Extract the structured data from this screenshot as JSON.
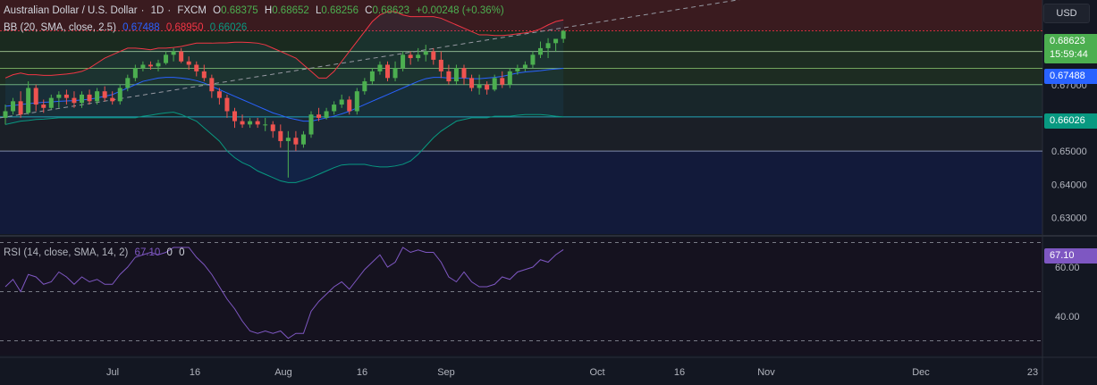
{
  "symbol": {
    "name": "Australian Dollar / U.S. Dollar",
    "interval": "1D",
    "exchange": "FXCM",
    "open_label": "O",
    "open": "0.68375",
    "high_label": "H",
    "high": "0.68652",
    "low_label": "L",
    "low": "0.68256",
    "close_label": "C",
    "close": "0.68623",
    "change": "+0.00248 (+0.36%)"
  },
  "bb": {
    "title": "BB (20, SMA, close, 2.5)",
    "basis": "0.67488",
    "upper": "0.68950",
    "lower": "0.66026"
  },
  "rsi": {
    "title": "RSI (14, close, SMA, 14, 2)",
    "value": "67.10",
    "ma": "0",
    "extra": "0"
  },
  "currency_button": "USD",
  "price_tags": {
    "last_price": "0.68623",
    "countdown": "15:59:44",
    "bb_basis": "0.67488",
    "bb_lower": "0.66026",
    "rsi_value": "67.10"
  },
  "price_axis": [
    "0.67000",
    "0.65000",
    "0.64000",
    "0.63000"
  ],
  "rsi_axis": [
    "60.00",
    "40.00"
  ],
  "time_axis": [
    "Jul",
    "16",
    "Aug",
    "16",
    "Sep",
    "Oct",
    "16",
    "Nov",
    "Dec",
    "23"
  ],
  "colors": {
    "up": "#26a69a",
    "up_candle": "#4caf50",
    "down": "#ef5350",
    "bb_basis": "#2962ff",
    "bb_upper": "#f23645",
    "bb_lower": "#089981",
    "rsi": "#7e57c2",
    "background": "#131722"
  },
  "chart_data": {
    "type": "candlestick",
    "price_ylim": [
      0.625,
      0.6955
    ],
    "rsi_ylim": [
      24,
      72
    ],
    "candles": [
      [
        0.66,
        0.664,
        0.658,
        0.662
      ],
      [
        0.662,
        0.666,
        0.661,
        0.665
      ],
      [
        0.665,
        0.668,
        0.66,
        0.661
      ],
      [
        0.6615,
        0.671,
        0.661,
        0.669
      ],
      [
        0.669,
        0.67,
        0.662,
        0.664
      ],
      [
        0.664,
        0.6655,
        0.6615,
        0.663
      ],
      [
        0.663,
        0.667,
        0.6625,
        0.666
      ],
      [
        0.666,
        0.668,
        0.663,
        0.667
      ],
      [
        0.667,
        0.6685,
        0.664,
        0.666
      ],
      [
        0.666,
        0.668,
        0.663,
        0.6645
      ],
      [
        0.6645,
        0.668,
        0.663,
        0.667
      ],
      [
        0.667,
        0.6685,
        0.664,
        0.665
      ],
      [
        0.665,
        0.669,
        0.664,
        0.668
      ],
      [
        0.668,
        0.6695,
        0.665,
        0.666
      ],
      [
        0.666,
        0.668,
        0.664,
        0.665
      ],
      [
        0.665,
        0.67,
        0.664,
        0.669
      ],
      [
        0.669,
        0.673,
        0.668,
        0.672
      ],
      [
        0.672,
        0.676,
        0.671,
        0.675
      ],
      [
        0.675,
        0.677,
        0.674,
        0.676
      ],
      [
        0.676,
        0.677,
        0.6745,
        0.6755
      ],
      [
        0.6755,
        0.6775,
        0.674,
        0.6765
      ],
      [
        0.6765,
        0.68,
        0.676,
        0.679
      ],
      [
        0.679,
        0.681,
        0.677,
        0.68
      ],
      [
        0.68,
        0.681,
        0.6765,
        0.677
      ],
      [
        0.677,
        0.6785,
        0.6745,
        0.676
      ],
      [
        0.676,
        0.677,
        0.6725,
        0.674
      ],
      [
        0.674,
        0.676,
        0.671,
        0.672
      ],
      [
        0.672,
        0.673,
        0.666,
        0.668
      ],
      [
        0.668,
        0.669,
        0.664,
        0.666
      ],
      [
        0.666,
        0.667,
        0.66,
        0.662
      ],
      [
        0.662,
        0.663,
        0.657,
        0.659
      ],
      [
        0.659,
        0.661,
        0.657,
        0.658
      ],
      [
        0.658,
        0.66,
        0.657,
        0.659
      ],
      [
        0.659,
        0.66,
        0.657,
        0.658
      ],
      [
        0.658,
        0.66,
        0.656,
        0.658
      ],
      [
        0.658,
        0.659,
        0.654,
        0.656
      ],
      [
        0.656,
        0.658,
        0.651,
        0.653
      ],
      [
        0.653,
        0.656,
        0.642,
        0.654
      ],
      [
        0.654,
        0.656,
        0.65,
        0.652
      ],
      [
        0.652,
        0.656,
        0.651,
        0.655
      ],
      [
        0.655,
        0.662,
        0.654,
        0.661
      ],
      [
        0.661,
        0.663,
        0.659,
        0.66
      ],
      [
        0.66,
        0.663,
        0.6595,
        0.662
      ],
      [
        0.662,
        0.665,
        0.661,
        0.664
      ],
      [
        0.664,
        0.667,
        0.663,
        0.6655
      ],
      [
        0.6655,
        0.6665,
        0.661,
        0.662
      ],
      [
        0.662,
        0.669,
        0.661,
        0.668
      ],
      [
        0.668,
        0.672,
        0.667,
        0.671
      ],
      [
        0.671,
        0.675,
        0.67,
        0.674
      ],
      [
        0.674,
        0.677,
        0.673,
        0.676
      ],
      [
        0.676,
        0.677,
        0.671,
        0.672
      ],
      [
        0.672,
        0.677,
        0.671,
        0.675
      ],
      [
        0.675,
        0.68,
        0.674,
        0.679
      ],
      [
        0.679,
        0.68,
        0.676,
        0.678
      ],
      [
        0.678,
        0.681,
        0.677,
        0.679
      ],
      [
        0.679,
        0.682,
        0.677,
        0.68
      ],
      [
        0.68,
        0.681,
        0.676,
        0.6775
      ],
      [
        0.6775,
        0.68,
        0.672,
        0.674
      ],
      [
        0.674,
        0.676,
        0.67,
        0.671
      ],
      [
        0.671,
        0.676,
        0.67,
        0.675
      ],
      [
        0.675,
        0.676,
        0.67,
        0.672
      ],
      [
        0.672,
        0.673,
        0.668,
        0.669
      ],
      [
        0.669,
        0.673,
        0.667,
        0.67
      ],
      [
        0.67,
        0.671,
        0.667,
        0.6685
      ],
      [
        0.6685,
        0.673,
        0.668,
        0.672
      ],
      [
        0.672,
        0.674,
        0.669,
        0.67
      ],
      [
        0.67,
        0.675,
        0.669,
        0.674
      ],
      [
        0.674,
        0.676,
        0.673,
        0.675
      ],
      [
        0.675,
        0.677,
        0.674,
        0.676
      ],
      [
        0.676,
        0.68,
        0.675,
        0.679
      ],
      [
        0.679,
        0.683,
        0.678,
        0.681
      ],
      [
        0.681,
        0.684,
        0.678,
        0.6825
      ],
      [
        0.6825,
        0.6835,
        0.68,
        0.6838
      ],
      [
        0.6838,
        0.6865,
        0.6826,
        0.6862
      ]
    ],
    "bb_upper": [
      0.672,
      0.673,
      0.6735,
      0.673,
      0.673,
      0.6728,
      0.6728,
      0.673,
      0.6732,
      0.6735,
      0.674,
      0.675,
      0.6765,
      0.678,
      0.679,
      0.68,
      0.681,
      0.681,
      0.6808,
      0.6805,
      0.681,
      0.681,
      0.6812,
      0.6815,
      0.682,
      0.6825,
      0.6825,
      0.6825,
      0.6826,
      0.6826,
      0.6828,
      0.6828,
      0.6827,
      0.6825,
      0.682,
      0.681,
      0.68,
      0.679,
      0.678,
      0.676,
      0.674,
      0.672,
      0.672,
      0.674,
      0.677,
      0.68,
      0.683,
      0.686,
      0.689,
      0.691,
      0.692,
      0.692,
      0.691,
      0.6905,
      0.6905,
      0.6905,
      0.6905,
      0.69,
      0.689,
      0.688,
      0.687,
      0.686,
      0.685,
      0.685,
      0.6848,
      0.6848,
      0.685,
      0.6853,
      0.6856,
      0.686,
      0.6868,
      0.688,
      0.689,
      0.6895
    ],
    "bb_basis": [
      0.6635,
      0.6637,
      0.664,
      0.6643,
      0.6645,
      0.6647,
      0.6648,
      0.665,
      0.6651,
      0.6652,
      0.6654,
      0.6656,
      0.666,
      0.6665,
      0.667,
      0.668,
      0.669,
      0.67,
      0.671,
      0.6715,
      0.672,
      0.6722,
      0.6722,
      0.672,
      0.6717,
      0.6712,
      0.6705,
      0.6695,
      0.6685,
      0.6675,
      0.6665,
      0.6655,
      0.6645,
      0.6635,
      0.6625,
      0.6615,
      0.6608,
      0.66,
      0.6595,
      0.659,
      0.659,
      0.6595,
      0.66,
      0.6605,
      0.6612,
      0.662,
      0.663,
      0.664,
      0.665,
      0.666,
      0.667,
      0.668,
      0.669,
      0.67,
      0.671,
      0.6718,
      0.6722,
      0.6722,
      0.672,
      0.672,
      0.672,
      0.6718,
      0.6718,
      0.672,
      0.6722,
      0.6725,
      0.673,
      0.6735,
      0.6738,
      0.674,
      0.6742,
      0.6745,
      0.6747,
      0.6749
    ],
    "bb_lower": [
      0.658,
      0.6585,
      0.659,
      0.6592,
      0.6595,
      0.6596,
      0.6598,
      0.66,
      0.66,
      0.66,
      0.66,
      0.66,
      0.66,
      0.66,
      0.66,
      0.66,
      0.66,
      0.66,
      0.6605,
      0.6608,
      0.6612,
      0.6615,
      0.6617,
      0.661,
      0.66,
      0.659,
      0.657,
      0.655,
      0.653,
      0.65,
      0.648,
      0.6465,
      0.6455,
      0.644,
      0.643,
      0.642,
      0.641,
      0.6405,
      0.6405,
      0.6412,
      0.642,
      0.643,
      0.644,
      0.645,
      0.6458,
      0.646,
      0.646,
      0.646,
      0.6455,
      0.6452,
      0.6452,
      0.6455,
      0.646,
      0.647,
      0.649,
      0.6515,
      0.654,
      0.656,
      0.6575,
      0.659,
      0.6595,
      0.66,
      0.66,
      0.66,
      0.6605,
      0.6605,
      0.6605,
      0.6608,
      0.661,
      0.661,
      0.661,
      0.6608,
      0.6605,
      0.6603
    ],
    "rsi": [
      52,
      55,
      50,
      57,
      56,
      53,
      54,
      58,
      56,
      53,
      56,
      54,
      55,
      53,
      53,
      57,
      60,
      64,
      65,
      66,
      65,
      66,
      68,
      68,
      68,
      64,
      61,
      57,
      52,
      47,
      43,
      38,
      34,
      33,
      34,
      33,
      34,
      31,
      33,
      33,
      42,
      46,
      49,
      52,
      54,
      51,
      55,
      59,
      62,
      65,
      60,
      62,
      68,
      66,
      67,
      66,
      66,
      62,
      56,
      54,
      58,
      54,
      52,
      52,
      53,
      56,
      55,
      58,
      59,
      60,
      63,
      62,
      65,
      67.1
    ],
    "horizontal_levels": [
      0.6862,
      0.68,
      0.6749,
      0.67,
      0.6603,
      0.65
    ],
    "trendline": {
      "start": 0.66,
      "end_slope_per_bar": 0.00037
    }
  }
}
